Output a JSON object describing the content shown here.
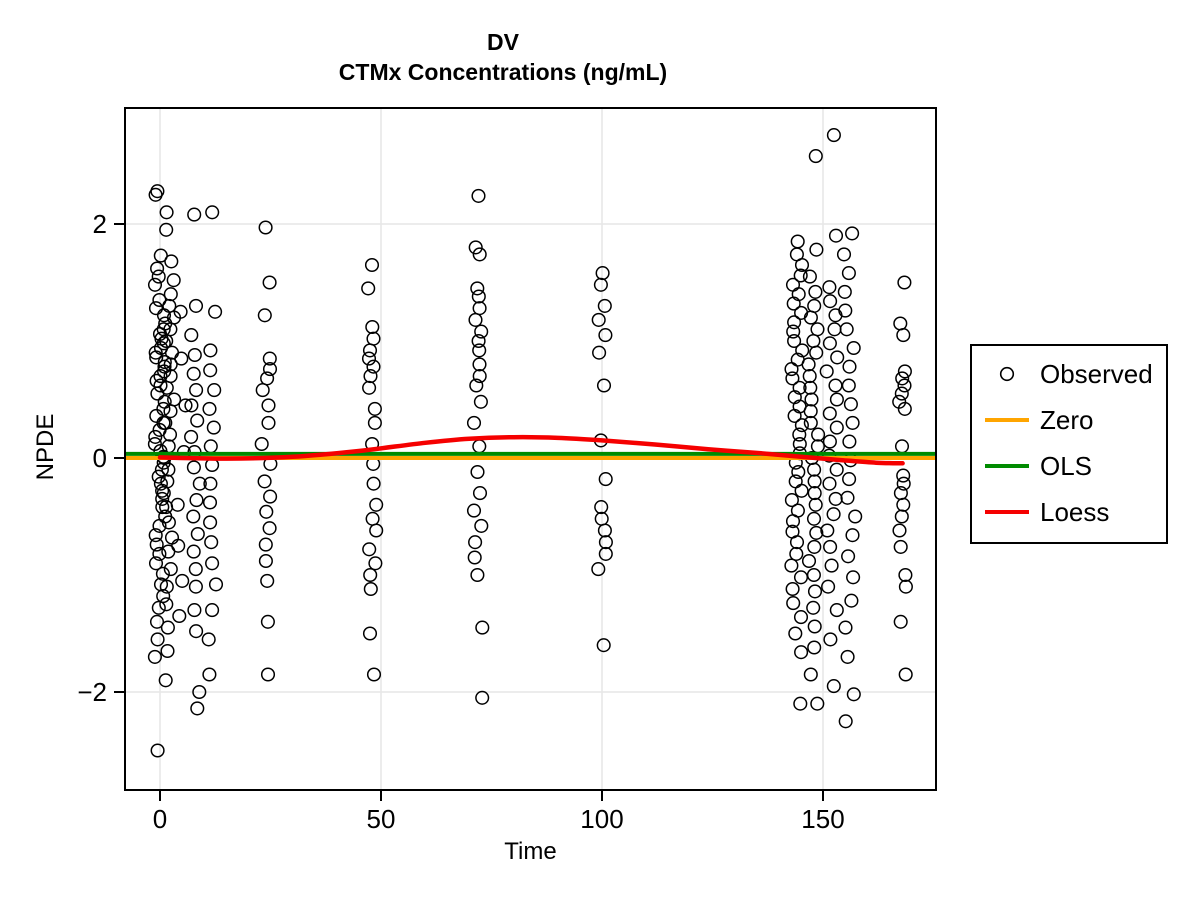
{
  "chart_data": {
    "type": "scatter",
    "title_line1": "DV",
    "title_line2": "CTMx Concentrations (ng/mL)",
    "xlabel": "Time",
    "ylabel": "NPDE",
    "xlim": [
      -8,
      175
    ],
    "ylim": [
      -2.83,
      3.0
    ],
    "grid": true,
    "x_ticks": {
      "values": [
        0,
        50,
        100,
        150
      ],
      "labels": [
        "0",
        "50",
        "100",
        "150"
      ]
    },
    "y_ticks": {
      "values": [
        -2,
        0,
        2
      ],
      "labels": [
        "−2",
        "0",
        "2"
      ]
    },
    "legend": [
      {
        "label": "Observed",
        "type": "point",
        "color": "#000000"
      },
      {
        "label": "Zero",
        "type": "line",
        "color": "#FFA500"
      },
      {
        "label": "OLS",
        "type": "line",
        "color": "#008B00"
      },
      {
        "label": "Loess",
        "type": "line",
        "color": "#F50000"
      }
    ],
    "zero_line": {
      "y": 0
    },
    "ols_line": {
      "intercept": 0.035,
      "slope": 0
    },
    "loess_curve": [
      [
        0,
        0.005
      ],
      [
        15,
        -0.005
      ],
      [
        30,
        0.01
      ],
      [
        45,
        0.06
      ],
      [
        60,
        0.13
      ],
      [
        70,
        0.165
      ],
      [
        80,
        0.178
      ],
      [
        90,
        0.172
      ],
      [
        100,
        0.15
      ],
      [
        112,
        0.115
      ],
      [
        124,
        0.075
      ],
      [
        136,
        0.04
      ],
      [
        146,
        0.008
      ],
      [
        154,
        -0.018
      ],
      [
        162,
        -0.04
      ],
      [
        168,
        -0.045
      ]
    ],
    "observed_clusters": [
      {
        "time": 0,
        "jitter": 1.2,
        "npde": [
          2.28,
          2.25,
          1.73,
          1.62,
          1.55,
          1.48,
          1.35,
          1.28,
          1.22,
          1.15,
          1.1,
          1.06,
          1.02,
          0.98,
          0.94,
          0.9,
          0.86,
          0.82,
          0.78,
          0.74,
          0.7,
          0.66,
          0.62,
          0.55,
          0.48,
          0.42,
          0.36,
          0.3,
          0.24,
          0.18,
          0.12,
          0.06,
          0.01,
          -0.04,
          -0.1,
          -0.16,
          -0.22,
          -0.28,
          -0.35,
          -0.42,
          -0.5,
          -0.58,
          -0.66,
          -0.74,
          -0.82,
          -0.9,
          -0.99,
          -1.08,
          -1.18,
          -1.28,
          -1.4,
          -1.55,
          -1.7,
          -2.5
        ]
      },
      {
        "time": 2,
        "jitter": 1.2,
        "npde": [
          2.1,
          1.95,
          1.68,
          1.52,
          1.4,
          1.3,
          1.2,
          1.1,
          1.0,
          0.9,
          0.8,
          0.7,
          0.6,
          0.5,
          0.4,
          0.3,
          0.2,
          0.1,
          0.0,
          -0.1,
          -0.2,
          -0.3,
          -0.42,
          -0.55,
          -0.68,
          -0.8,
          -0.95,
          -1.1,
          -1.25,
          -1.45,
          -1.65,
          -1.9
        ]
      },
      {
        "time": 5,
        "jitter": 1.0,
        "npde": [
          1.25,
          0.85,
          0.45,
          0.05,
          -0.4,
          -0.75,
          -1.05,
          -1.35
        ]
      },
      {
        "time": 8,
        "jitter": 1.0,
        "npde": [
          2.08,
          1.3,
          1.05,
          0.88,
          0.72,
          0.58,
          0.45,
          0.32,
          0.18,
          0.05,
          -0.08,
          -0.22,
          -0.36,
          -0.5,
          -0.65,
          -0.8,
          -0.95,
          -1.1,
          -1.3,
          -1.48,
          -2.0,
          -2.14
        ]
      },
      {
        "time": 12,
        "jitter": 1.0,
        "npde": [
          2.1,
          1.25,
          0.92,
          0.75,
          0.58,
          0.42,
          0.26,
          0.1,
          -0.06,
          -0.22,
          -0.38,
          -0.55,
          -0.72,
          -0.9,
          -1.08,
          -1.3,
          -1.55,
          -1.85
        ]
      },
      {
        "time": 24,
        "jitter": 1.0,
        "npde": [
          1.97,
          1.5,
          1.22,
          0.85,
          0.76,
          0.68,
          0.58,
          0.45,
          0.3,
          0.12,
          -0.05,
          -0.2,
          -0.33,
          -0.46,
          -0.6,
          -0.74,
          -0.88,
          -1.05,
          -1.4,
          -1.85
        ]
      },
      {
        "time": 48,
        "jitter": 1.0,
        "npde": [
          1.65,
          1.45,
          1.12,
          1.02,
          0.92,
          0.85,
          0.78,
          0.7,
          0.6,
          0.42,
          0.3,
          0.12,
          -0.05,
          -0.22,
          -0.4,
          -0.52,
          -0.62,
          -0.78,
          -0.9,
          -1.0,
          -1.12,
          -1.5,
          -1.85
        ]
      },
      {
        "time": 72,
        "jitter": 1.0,
        "npde": [
          2.24,
          1.8,
          1.74,
          1.45,
          1.38,
          1.28,
          1.18,
          1.08,
          1.0,
          0.92,
          0.8,
          0.7,
          0.62,
          0.48,
          0.3,
          0.1,
          -0.12,
          -0.3,
          -0.45,
          -0.58,
          -0.72,
          -0.85,
          -1.0,
          -1.45,
          -2.05
        ]
      },
      {
        "time": 100,
        "jitter": 1.0,
        "npde": [
          1.58,
          1.48,
          1.3,
          1.18,
          1.05,
          0.9,
          0.62,
          0.15,
          -0.18,
          -0.42,
          -0.52,
          -0.62,
          -0.72,
          -0.82,
          -0.95,
          -1.6
        ]
      },
      {
        "time": 144,
        "jitter": 1.3,
        "npde": [
          1.85,
          1.74,
          1.65,
          1.56,
          1.48,
          1.4,
          1.32,
          1.24,
          1.16,
          1.08,
          1.0,
          0.92,
          0.84,
          0.76,
          0.68,
          0.6,
          0.52,
          0.44,
          0.36,
          0.28,
          0.2,
          0.12,
          0.04,
          -0.04,
          -0.12,
          -0.2,
          -0.28,
          -0.36,
          -0.45,
          -0.54,
          -0.63,
          -0.72,
          -0.82,
          -0.92,
          -1.02,
          -1.12,
          -1.24,
          -1.36,
          -1.5,
          -1.66,
          -2.1
        ]
      },
      {
        "time": 148,
        "jitter": 1.3,
        "npde": [
          2.58,
          1.78,
          1.55,
          1.42,
          1.3,
          1.2,
          1.1,
          1.0,
          0.9,
          0.8,
          0.7,
          0.6,
          0.5,
          0.4,
          0.3,
          0.2,
          0.1,
          0.0,
          -0.1,
          -0.2,
          -0.3,
          -0.4,
          -0.52,
          -0.64,
          -0.76,
          -0.88,
          -1.0,
          -1.14,
          -1.28,
          -1.44,
          -1.62,
          -1.85,
          -2.1
        ]
      },
      {
        "time": 152,
        "jitter": 1.3,
        "npde": [
          2.76,
          1.9,
          1.46,
          1.34,
          1.22,
          1.1,
          0.98,
          0.86,
          0.74,
          0.62,
          0.5,
          0.38,
          0.26,
          0.14,
          0.02,
          -0.1,
          -0.22,
          -0.35,
          -0.48,
          -0.62,
          -0.76,
          -0.92,
          -1.1,
          -1.3,
          -1.55,
          -1.95
        ]
      },
      {
        "time": 156,
        "jitter": 1.3,
        "npde": [
          1.92,
          1.74,
          1.58,
          1.42,
          1.26,
          1.1,
          0.94,
          0.78,
          0.62,
          0.46,
          0.3,
          0.14,
          -0.02,
          -0.18,
          -0.34,
          -0.5,
          -0.66,
          -0.84,
          -1.02,
          -1.22,
          -1.45,
          -1.7,
          -2.02,
          -2.25
        ]
      },
      {
        "time": 168,
        "jitter": 0.8,
        "npde": [
          1.5,
          1.15,
          1.05,
          0.74,
          0.68,
          0.62,
          0.55,
          0.48,
          0.42,
          0.1,
          -0.15,
          -0.22,
          -0.3,
          -0.4,
          -0.5,
          -0.62,
          -0.76,
          -1.0,
          -1.1,
          -1.4,
          -1.85
        ]
      }
    ],
    "point_style": {
      "shape": "open-circle",
      "color": "#000000"
    },
    "grid_color": "#e6e6e6"
  }
}
